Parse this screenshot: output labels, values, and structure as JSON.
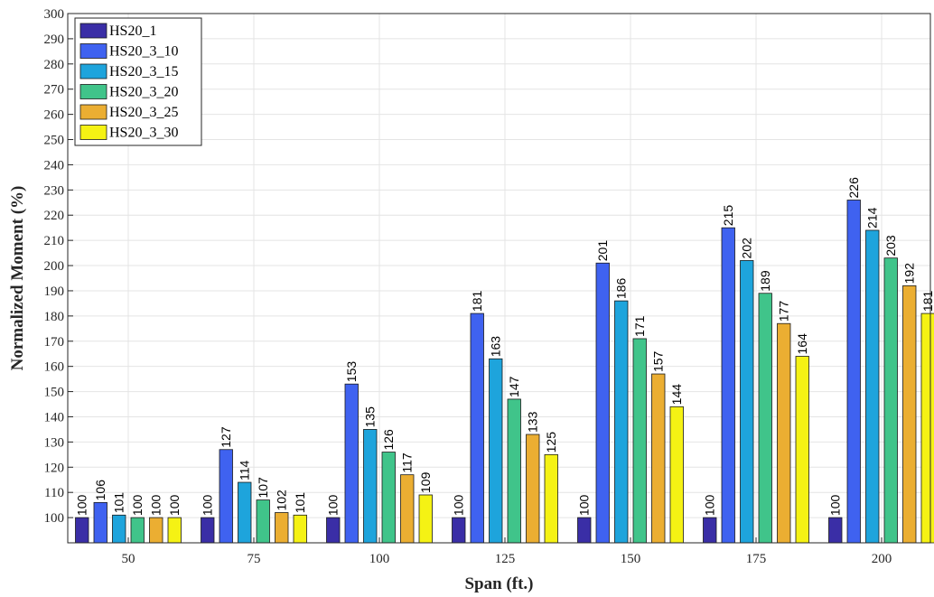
{
  "chart_data": {
    "type": "bar",
    "xlabel": "Span (ft.)",
    "ylabel": "Normalized Moment (%)",
    "categories": [
      "50",
      "75",
      "100",
      "125",
      "150",
      "175",
      "200"
    ],
    "ylim": [
      90,
      300
    ],
    "yticks": [
      100,
      110,
      120,
      130,
      140,
      150,
      160,
      170,
      180,
      190,
      200,
      210,
      220,
      230,
      240,
      250,
      260,
      270,
      280,
      290,
      300
    ],
    "grid": true,
    "legend_position": "top-left",
    "series": [
      {
        "name": "HS20_1",
        "color": "#3a2ea6",
        "values": [
          100,
          100,
          100,
          100,
          100,
          100,
          100
        ]
      },
      {
        "name": "HS20_3_10",
        "color": "#3f62f0",
        "values": [
          106,
          127,
          153,
          181,
          201,
          215,
          226
        ]
      },
      {
        "name": "HS20_3_15",
        "color": "#1ea4dc",
        "values": [
          101,
          114,
          135,
          163,
          186,
          202,
          214
        ]
      },
      {
        "name": "HS20_3_20",
        "color": "#40c48a",
        "values": [
          100,
          107,
          126,
          147,
          171,
          189,
          203
        ]
      },
      {
        "name": "HS20_3_25",
        "color": "#ebae32",
        "values": [
          100,
          102,
          117,
          133,
          157,
          177,
          192
        ]
      },
      {
        "name": "HS20_3_30",
        "color": "#f5f214",
        "values": [
          100,
          101,
          109,
          125,
          144,
          164,
          181
        ]
      }
    ]
  }
}
